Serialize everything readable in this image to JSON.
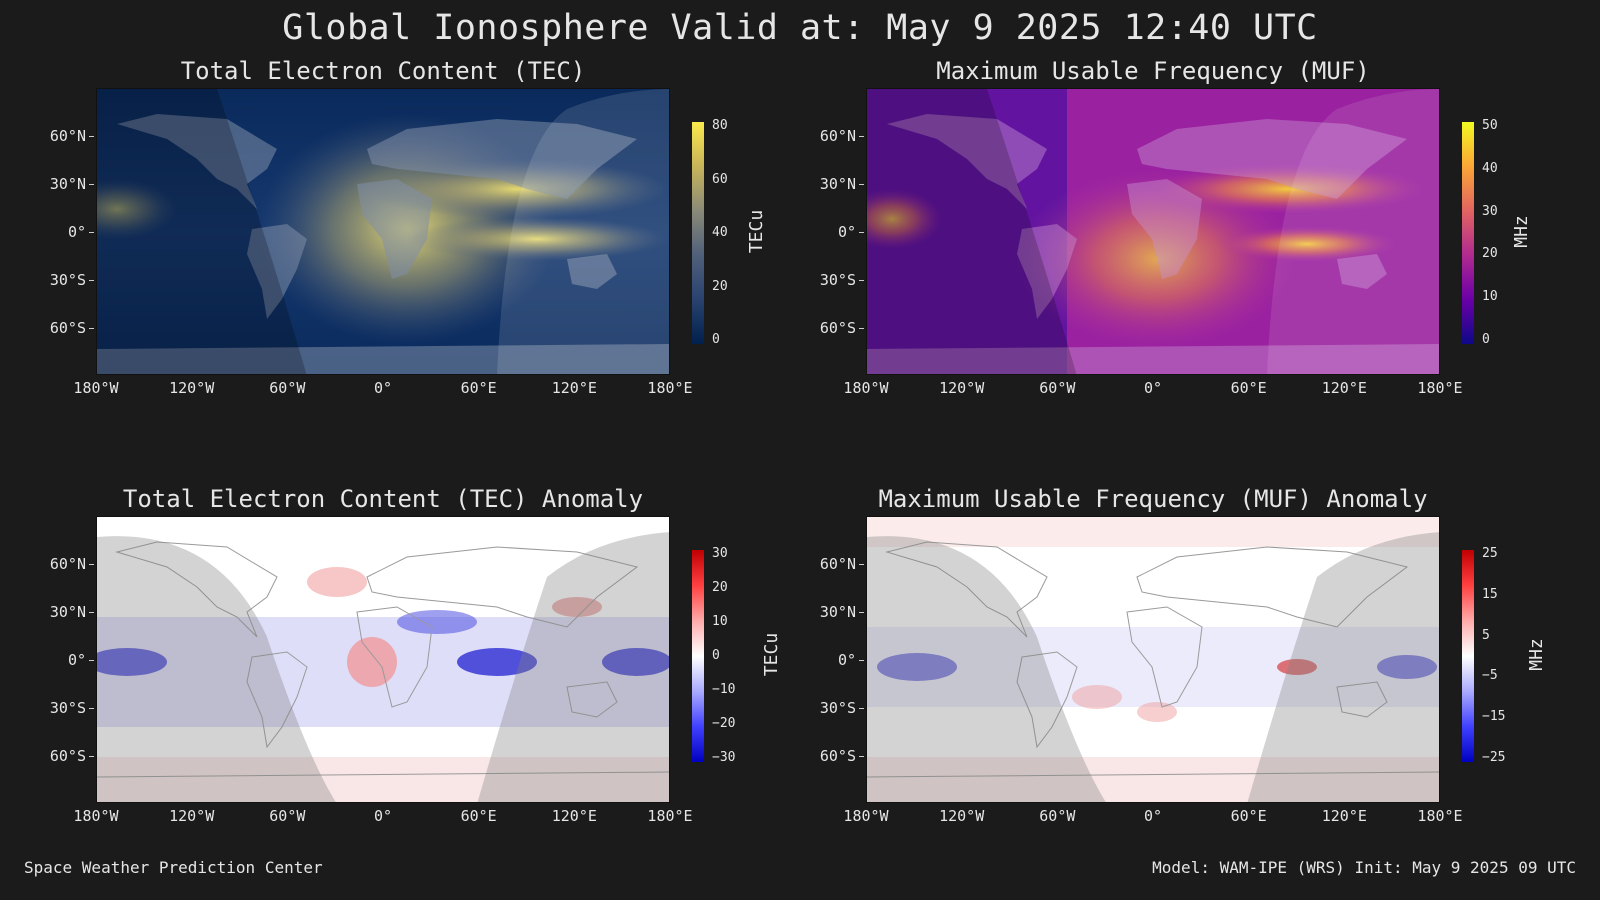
{
  "title": "Global Ionosphere Valid at: May 9 2025 12:40 UTC",
  "footer_left": "Space Weather Prediction Center",
  "footer_right": "Model: WAM-IPE (WRS) Init: May 9 2025 09 UTC",
  "lat_ticks": [
    "60°N",
    "30°N",
    "0°",
    "30°S",
    "60°S"
  ],
  "lon_ticks": [
    "180°W",
    "120°W",
    "60°W",
    "0°",
    "60°E",
    "120°E",
    "180°E"
  ],
  "panels": [
    {
      "title": "Total Electron Content (TEC)",
      "unit": "TECu",
      "colorbar_ticks": [
        "80",
        "60",
        "40",
        "20",
        "0"
      ],
      "colormap": "cividis",
      "range": [
        0,
        80
      ]
    },
    {
      "title": "Maximum Usable Frequency (MUF)",
      "unit": "MHz",
      "colorbar_ticks": [
        "50",
        "40",
        "30",
        "20",
        "10",
        "0"
      ],
      "colormap": "plasma",
      "range": [
        0,
        50
      ]
    },
    {
      "title": "Total Electron Content (TEC) Anomaly",
      "unit": "TECu",
      "colorbar_ticks": [
        "30",
        "20",
        "10",
        "0",
        "−10",
        "−20",
        "−30"
      ],
      "colormap": "bwr",
      "range": [
        -30,
        30
      ]
    },
    {
      "title": "Maximum Usable Frequency (MUF) Anomaly",
      "unit": "MHz",
      "colorbar_ticks": [
        "25",
        "15",
        "5",
        "−5",
        "−15",
        "−25"
      ],
      "colormap": "bwr",
      "range": [
        -25,
        25
      ]
    }
  ]
}
